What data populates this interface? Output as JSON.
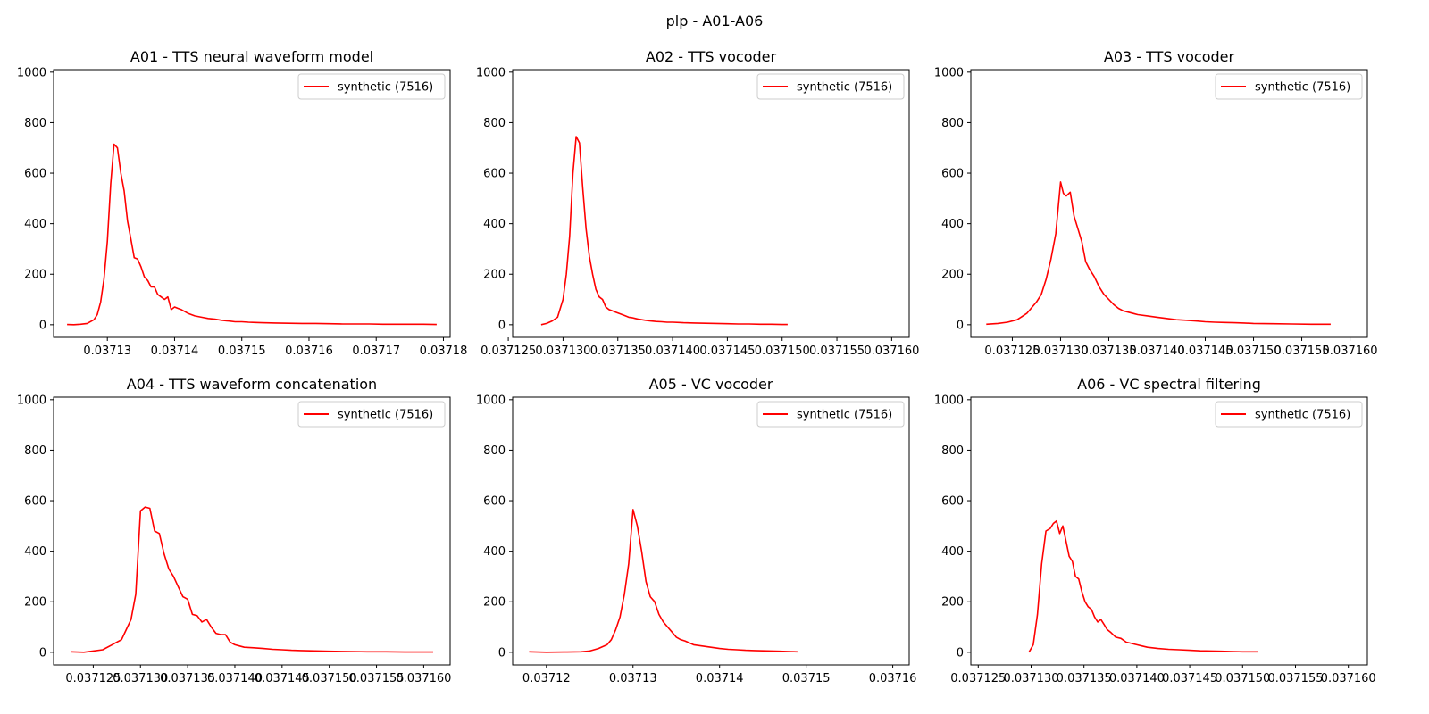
{
  "figure": {
    "suptitle": "plp - A01-A06",
    "colors": {
      "line": "#ff0000",
      "axes": "#000000",
      "legend_border": "#cccccc",
      "background": "#ffffff"
    }
  },
  "chart_data": [
    {
      "type": "line",
      "title": "A01 - TTS neural waveform model",
      "xlabel": "",
      "ylabel": "",
      "xlim": [
        0.037122,
        0.037181
      ],
      "ylim": [
        -50,
        1010
      ],
      "xticks": [
        0.03713,
        0.03714,
        0.03715,
        0.03716,
        0.03717,
        0.03718
      ],
      "xtick_labels": [
        "0.03713",
        "0.03714",
        "0.03715",
        "0.03716",
        "0.03717",
        "0.03718"
      ],
      "yticks": [
        0,
        200,
        400,
        600,
        800,
        1000
      ],
      "ytick_labels": [
        "0",
        "200",
        "400",
        "600",
        "800",
        "1000"
      ],
      "legend": "upper right",
      "grid": false,
      "series": [
        {
          "name": "synthetic (7516)",
          "color": "#ff0000",
          "x": [
            0.037124,
            0.037125,
            0.037126,
            0.037127,
            0.037128,
            0.0371285,
            0.037129,
            0.0371295,
            0.03713,
            0.0371305,
            0.037131,
            0.0371315,
            0.037132,
            0.0371325,
            0.037133,
            0.0371335,
            0.037134,
            0.0371345,
            0.037135,
            0.0371355,
            0.037136,
            0.0371365,
            0.037137,
            0.0371375,
            0.037138,
            0.0371385,
            0.037139,
            0.0371395,
            0.03714,
            0.0371405,
            0.037141,
            0.037142,
            0.037143,
            0.037144,
            0.037145,
            0.037146,
            0.037147,
            0.037148,
            0.037149,
            0.03715,
            0.037151,
            0.037152,
            0.037153,
            0.037155,
            0.037157,
            0.037159,
            0.037161,
            0.037163,
            0.037165,
            0.037167,
            0.037169,
            0.037171,
            0.037173,
            0.037175,
            0.037177,
            0.037179
          ],
          "values": [
            1,
            0,
            2,
            5,
            20,
            40,
            90,
            180,
            330,
            560,
            715,
            700,
            600,
            530,
            410,
            340,
            265,
            260,
            230,
            190,
            175,
            150,
            150,
            120,
            110,
            100,
            110,
            60,
            70,
            65,
            60,
            45,
            35,
            30,
            25,
            22,
            18,
            15,
            12,
            12,
            10,
            9,
            8,
            7,
            6,
            5,
            5,
            4,
            3,
            3,
            3,
            2,
            2,
            2,
            2,
            1
          ]
        }
      ]
    },
    {
      "type": "line",
      "title": "A02 - TTS vocoder",
      "xlabel": "",
      "ylabel": "",
      "xlim": [
        0.0371254,
        0.0371616
      ],
      "ylim": [
        -50,
        1010
      ],
      "xticks": [
        0.037125,
        0.03713,
        0.037135,
        0.03714,
        0.037145,
        0.03715,
        0.037155,
        0.03716
      ],
      "xtick_labels": [
        "0.037125",
        "0.037130",
        "0.037135",
        "0.037140",
        "0.037145",
        "0.037150",
        "0.037155",
        "0.037160"
      ],
      "yticks": [
        0,
        200,
        400,
        600,
        800,
        1000
      ],
      "ytick_labels": [
        "0",
        "200",
        "400",
        "600",
        "800",
        "1000"
      ],
      "legend": "upper right",
      "grid": false,
      "series": [
        {
          "name": "synthetic (7516)",
          "color": "#ff0000",
          "x": [
            0.037128,
            0.0371285,
            0.037129,
            0.0371295,
            0.03713,
            0.0371303,
            0.0371306,
            0.0371309,
            0.0371312,
            0.0371315,
            0.0371318,
            0.0371321,
            0.0371324,
            0.0371327,
            0.037133,
            0.0371333,
            0.0371336,
            0.0371339,
            0.0371342,
            0.0371345,
            0.0371348,
            0.0371351,
            0.0371354,
            0.0371357,
            0.037136,
            0.0371363,
            0.0371366,
            0.0371369,
            0.0371372,
            0.0371375,
            0.037138,
            0.0371385,
            0.037139,
            0.0371395,
            0.03714,
            0.037141,
            0.037142,
            0.037143,
            0.037144,
            0.037145,
            0.037146,
            0.037147,
            0.037148,
            0.037149,
            0.03715,
            0.0371505
          ],
          "values": [
            0,
            5,
            15,
            30,
            100,
            200,
            350,
            600,
            745,
            720,
            540,
            380,
            270,
            200,
            140,
            110,
            100,
            70,
            60,
            55,
            50,
            45,
            40,
            35,
            30,
            28,
            25,
            22,
            20,
            18,
            15,
            13,
            12,
            10,
            10,
            8,
            7,
            6,
            5,
            4,
            3,
            3,
            2,
            2,
            1,
            1
          ]
        }
      ]
    },
    {
      "type": "line",
      "title": "A03 - TTS vocoder",
      "xlabel": "",
      "ylabel": "",
      "xlim": [
        0.0371207,
        0.0371618
      ],
      "ylim": [
        -50,
        1010
      ],
      "xticks": [
        0.037125,
        0.03713,
        0.037135,
        0.03714,
        0.037145,
        0.03715,
        0.037155,
        0.03716
      ],
      "xtick_labels": [
        "0.037125",
        "0.037130",
        "0.037135",
        "0.037140",
        "0.037145",
        "0.037150",
        "0.037155",
        "0.037160"
      ],
      "yticks": [
        0,
        200,
        400,
        600,
        800,
        1000
      ],
      "ytick_labels": [
        "0",
        "200",
        "400",
        "600",
        "800",
        "1000"
      ],
      "legend": "upper right",
      "grid": false,
      "series": [
        {
          "name": "synthetic (7516)",
          "color": "#ff0000",
          "x": [
            0.0371223,
            0.0371235,
            0.0371245,
            0.0371255,
            0.0371265,
            0.0371275,
            0.037128,
            0.0371285,
            0.037129,
            0.0371295,
            0.03713,
            0.0371303,
            0.0371306,
            0.037131,
            0.0371314,
            0.0371318,
            0.0371322,
            0.0371326,
            0.037133,
            0.0371335,
            0.037134,
            0.0371345,
            0.037135,
            0.0371355,
            0.037136,
            0.0371365,
            0.037137,
            0.037138,
            0.037139,
            0.03714,
            0.037141,
            0.037142,
            0.037143,
            0.037144,
            0.037145,
            0.037146,
            0.037147,
            0.037148,
            0.037149,
            0.03715,
            0.037152,
            0.037154,
            0.037156,
            0.037158
          ],
          "values": [
            2,
            5,
            10,
            20,
            45,
            90,
            120,
            180,
            260,
            360,
            565,
            520,
            510,
            525,
            430,
            380,
            330,
            250,
            220,
            190,
            150,
            120,
            100,
            80,
            65,
            55,
            50,
            40,
            35,
            30,
            25,
            20,
            18,
            15,
            12,
            10,
            9,
            8,
            7,
            5,
            4,
            3,
            2,
            2
          ]
        }
      ]
    },
    {
      "type": "line",
      "title": "A04 - TTS waveform concatenation",
      "xlabel": "",
      "ylabel": "",
      "xlim": [
        0.0371208,
        0.0371628
      ],
      "ylim": [
        -50,
        1010
      ],
      "xticks": [
        0.037125,
        0.03713,
        0.037135,
        0.03714,
        0.037145,
        0.03715,
        0.037155,
        0.03716
      ],
      "xtick_labels": [
        "0.037125",
        "0.037130",
        "0.037135",
        "0.037140",
        "0.037145",
        "0.037150",
        "0.037155",
        "0.037160"
      ],
      "yticks": [
        0,
        200,
        400,
        600,
        800,
        1000
      ],
      "ytick_labels": [
        "0",
        "200",
        "400",
        "600",
        "800",
        "1000"
      ],
      "legend": "upper right",
      "grid": false,
      "series": [
        {
          "name": "synthetic (7516)",
          "color": "#ff0000",
          "x": [
            0.0371226,
            0.037124,
            0.037125,
            0.037126,
            0.037127,
            0.037128,
            0.0371285,
            0.037129,
            0.0371295,
            0.03713,
            0.0371305,
            0.037131,
            0.0371315,
            0.037132,
            0.0371325,
            0.037133,
            0.0371335,
            0.037134,
            0.0371345,
            0.037135,
            0.0371355,
            0.037136,
            0.0371365,
            0.037137,
            0.0371375,
            0.037138,
            0.0371385,
            0.037139,
            0.0371395,
            0.03714,
            0.0371405,
            0.037141,
            0.037142,
            0.037143,
            0.037144,
            0.037145,
            0.037146,
            0.037147,
            0.037148,
            0.037149,
            0.03715,
            0.037152,
            0.037154,
            0.037156,
            0.037158,
            0.037161
          ],
          "values": [
            2,
            0,
            5,
            10,
            30,
            50,
            90,
            130,
            230,
            560,
            575,
            570,
            480,
            470,
            390,
            330,
            300,
            260,
            220,
            210,
            150,
            145,
            120,
            130,
            100,
            75,
            70,
            70,
            40,
            30,
            25,
            20,
            18,
            15,
            12,
            10,
            8,
            7,
            6,
            5,
            4,
            3,
            2,
            2,
            1,
            1
          ]
        }
      ]
    },
    {
      "type": "line",
      "title": "A05 - VC vocoder",
      "xlabel": "",
      "ylabel": "",
      "xlim": [
        0.0371161,
        0.0371619
      ],
      "ylim": [
        -50,
        1010
      ],
      "xticks": [
        0.03712,
        0.03713,
        0.03714,
        0.03715,
        0.03716
      ],
      "xtick_labels": [
        "0.03712",
        "0.03713",
        "0.03714",
        "0.03715",
        "0.03716"
      ],
      "yticks": [
        0,
        200,
        400,
        600,
        800,
        1000
      ],
      "ytick_labels": [
        "0",
        "200",
        "400",
        "600",
        "800",
        "1000"
      ],
      "legend": "upper right",
      "grid": false,
      "series": [
        {
          "name": "synthetic (7516)",
          "color": "#ff0000",
          "x": [
            0.037118,
            0.03712,
            0.037122,
            0.037124,
            0.037125,
            0.037126,
            0.037127,
            0.0371275,
            0.037128,
            0.0371285,
            0.037129,
            0.0371295,
            0.03713,
            0.0371305,
            0.037131,
            0.0371315,
            0.037132,
            0.0371325,
            0.037133,
            0.0371335,
            0.037134,
            0.0371345,
            0.037135,
            0.0371355,
            0.037136,
            0.037137,
            0.037138,
            0.037139,
            0.03714,
            0.037141,
            0.037142,
            0.037143,
            0.037144,
            0.037145,
            0.037146,
            0.037147,
            0.037148,
            0.037149
          ],
          "values": [
            2,
            0,
            1,
            2,
            5,
            15,
            30,
            50,
            90,
            140,
            230,
            350,
            565,
            500,
            400,
            280,
            220,
            200,
            150,
            120,
            100,
            80,
            60,
            50,
            45,
            30,
            25,
            20,
            15,
            12,
            10,
            8,
            7,
            6,
            5,
            4,
            3,
            2
          ]
        }
      ]
    },
    {
      "type": "line",
      "title": "A06 - VC spectral filtering",
      "xlabel": "",
      "ylabel": "",
      "xlim": [
        0.0371243,
        0.0371618
      ],
      "ylim": [
        -50,
        1010
      ],
      "xticks": [
        0.037125,
        0.03713,
        0.037135,
        0.03714,
        0.037145,
        0.03715,
        0.037155,
        0.03716
      ],
      "xtick_labels": [
        "0.037125",
        "0.037130",
        "0.037135",
        "0.037140",
        "0.037145",
        "0.037150",
        "0.037155",
        "0.037160"
      ],
      "yticks": [
        0,
        200,
        400,
        600,
        800,
        1000
      ],
      "ytick_labels": [
        "0",
        "200",
        "400",
        "600",
        "800",
        "1000"
      ],
      "legend": "upper right",
      "grid": false,
      "series": [
        {
          "name": "synthetic (7516)",
          "color": "#ff0000",
          "x": [
            0.0371298,
            0.0371302,
            0.0371306,
            0.037131,
            0.0371314,
            0.0371318,
            0.0371321,
            0.0371324,
            0.0371327,
            0.037133,
            0.0371333,
            0.0371336,
            0.0371339,
            0.0371342,
            0.0371345,
            0.0371348,
            0.0371351,
            0.0371354,
            0.0371357,
            0.037136,
            0.0371363,
            0.0371366,
            0.0371369,
            0.0371372,
            0.0371375,
            0.037138,
            0.0371385,
            0.037139,
            0.0371395,
            0.03714,
            0.0371405,
            0.037141,
            0.037142,
            0.037143,
            0.037144,
            0.037145,
            0.037146,
            0.037147,
            0.037148,
            0.037149,
            0.03715,
            0.0371515
          ],
          "values": [
            0,
            30,
            150,
            350,
            480,
            490,
            510,
            520,
            470,
            500,
            440,
            380,
            360,
            300,
            290,
            240,
            200,
            180,
            170,
            140,
            120,
            130,
            110,
            90,
            80,
            60,
            55,
            40,
            35,
            30,
            25,
            20,
            15,
            12,
            10,
            8,
            6,
            5,
            4,
            3,
            2,
            2
          ]
        }
      ]
    }
  ]
}
